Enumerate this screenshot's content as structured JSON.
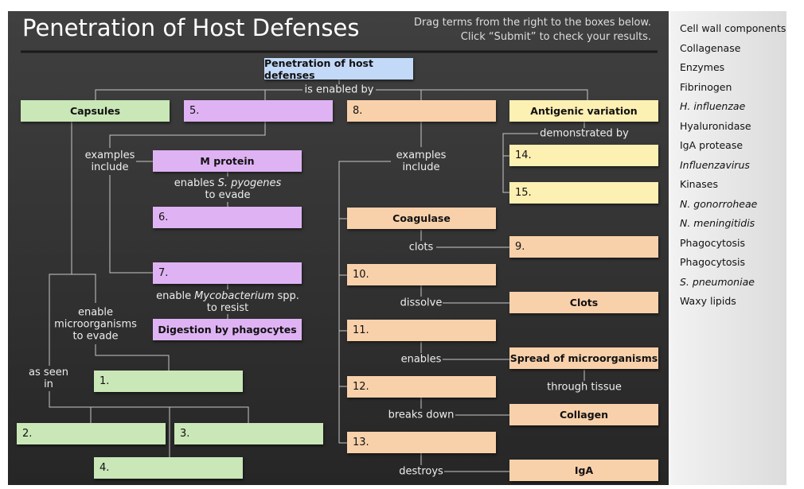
{
  "header": {
    "title": "Penetration of Host Defenses",
    "instructions": [
      "Drag terms from the right to the boxes below.",
      "Click “Submit” to check your results."
    ]
  },
  "nodes": [
    {
      "label": "Penetration of host defenses"
    },
    {
      "label": "Capsules"
    },
    {
      "label": "5."
    },
    {
      "label": "8."
    },
    {
      "label": "Antigenic variation"
    },
    {
      "label": "14."
    },
    {
      "label": "15."
    },
    {
      "label": "M protein"
    },
    {
      "label": "6."
    },
    {
      "label": "7."
    },
    {
      "label": "Digestion by phagocytes"
    },
    {
      "label": "1."
    },
    {
      "label": "2."
    },
    {
      "label": "3."
    },
    {
      "label": "4."
    },
    {
      "label": "Coagulase"
    },
    {
      "label": "9."
    },
    {
      "label": "10."
    },
    {
      "label": "Clots"
    },
    {
      "label": "11."
    },
    {
      "label": "Spread of microorganisms"
    },
    {
      "label": "12."
    },
    {
      "label": "Collagen"
    },
    {
      "label": "13."
    },
    {
      "label": "IgA"
    }
  ],
  "connectors": [
    {
      "text": "is enabled by"
    },
    {
      "text": "demonstrated by"
    },
    {
      "text": "examples include"
    },
    {
      "text": "examples include"
    },
    {
      "segments": [
        {
          "text": "enables"
        },
        {
          "text": "S. pyogenes",
          "italic": true
        }
      ],
      "line2": "to evade"
    },
    {
      "segments": [
        {
          "text": "enable"
        },
        {
          "text": "Mycobacterium",
          "italic": true
        },
        {
          "text": "spp."
        }
      ],
      "line2": "to resist"
    },
    {
      "text": "enable microorganisms to evade"
    },
    {
      "text": "as seen in"
    },
    {
      "text": "clots"
    },
    {
      "text": "dissolve"
    },
    {
      "text": "enables"
    },
    {
      "text": "through tissue"
    },
    {
      "text": "breaks down"
    },
    {
      "text": "destroys"
    }
  ],
  "terms": [
    {
      "text": "Cell wall components"
    },
    {
      "text": "Collagenase"
    },
    {
      "text": "Enzymes"
    },
    {
      "text": "Fibrinogen"
    },
    {
      "text": "H. influenzae",
      "italic": true
    },
    {
      "text": "Hyaluronidase"
    },
    {
      "text": "IgA protease"
    },
    {
      "text": "Influenzavirus",
      "italic": true
    },
    {
      "text": "Kinases"
    },
    {
      "text": "N. gonorroheae",
      "italic": true
    },
    {
      "text": "N. meningitidis",
      "italic": true
    },
    {
      "text": "Phagocytosis"
    },
    {
      "text": "Phagocytosis"
    },
    {
      "text": "S. pneumoniae",
      "italic": true
    },
    {
      "text": "Waxy lipids"
    }
  ]
}
